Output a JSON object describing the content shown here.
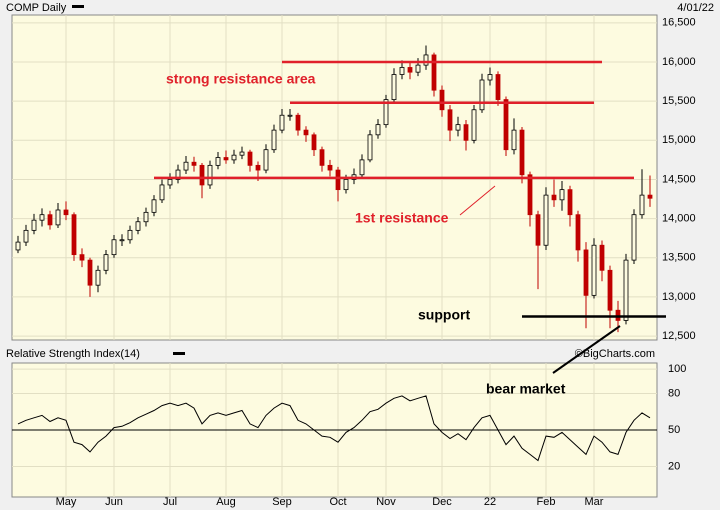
{
  "chart_data": [
    {
      "type": "candlestick",
      "title": "COMP Daily",
      "date_label": "4/01/22",
      "watermark": "©BigCharts.com",
      "categories": [
        null,
        null,
        null,
        null,
        null,
        null,
        "May",
        null,
        null,
        null,
        null,
        null,
        "Jun",
        null,
        null,
        null,
        null,
        null,
        null,
        "Jul",
        null,
        null,
        null,
        null,
        null,
        null,
        "Aug",
        null,
        null,
        null,
        null,
        null,
        null,
        "Sep",
        null,
        null,
        null,
        null,
        null,
        null,
        "Oct",
        null,
        null,
        null,
        null,
        null,
        "Nov",
        null,
        null,
        null,
        null,
        null,
        null,
        "Dec",
        null,
        null,
        null,
        null,
        null,
        "22",
        null,
        null,
        null,
        null,
        null,
        null,
        "Feb",
        null,
        null,
        null,
        null,
        null,
        "Mar",
        null,
        null,
        null,
        null,
        null,
        null,
        null
      ],
      "open": [
        13600,
        13700,
        13850,
        13980,
        14050,
        13920,
        14110,
        14050,
        13540,
        13470,
        13150,
        13340,
        13540,
        13730,
        13730,
        13850,
        13960,
        14080,
        14240,
        14430,
        14500,
        14620,
        14720,
        14680,
        14430,
        14680,
        14780,
        14750,
        14810,
        14850,
        14680,
        14620,
        14880,
        15130,
        15320,
        15320,
        15130,
        15070,
        14880,
        14680,
        14620,
        14370,
        14500,
        14560,
        14750,
        15070,
        15200,
        15520,
        15840,
        15930,
        15870,
        15960,
        16090,
        15640,
        15390,
        15130,
        15200,
        15000,
        15390,
        15770,
        15840,
        15520,
        14880,
        15130,
        14560,
        14050,
        13660,
        14300,
        14240,
        14370,
        14050,
        13600,
        13020,
        13660,
        13340,
        12830,
        12700,
        13470,
        14050,
        14300
      ],
      "high": [
        13780,
        13920,
        14060,
        14130,
        14100,
        14200,
        14220,
        14080,
        13620,
        13500,
        13400,
        13600,
        13790,
        13800,
        13910,
        14020,
        14140,
        14300,
        14500,
        14580,
        14690,
        14800,
        14790,
        14710,
        14740,
        14850,
        14870,
        14880,
        14920,
        14880,
        14730,
        14950,
        15200,
        15400,
        15400,
        15350,
        15180,
        15100,
        14920,
        14750,
        14660,
        14560,
        14640,
        14820,
        15130,
        15270,
        15580,
        15920,
        16020,
        16000,
        16050,
        16210,
        16120,
        15700,
        15450,
        15300,
        15260,
        15450,
        15850,
        15930,
        15880,
        15560,
        15280,
        15170,
        14600,
        14100,
        14400,
        14500,
        14480,
        14420,
        14100,
        13700,
        13750,
        13720,
        13400,
        12950,
        13550,
        14120,
        14630,
        14550
      ],
      "low": [
        13560,
        13650,
        13800,
        13900,
        13860,
        13880,
        13980,
        13460,
        13380,
        13000,
        13060,
        13290,
        13500,
        13650,
        13680,
        13800,
        13900,
        14030,
        14200,
        14380,
        14450,
        14570,
        14600,
        14260,
        14380,
        14630,
        14700,
        14700,
        14760,
        14600,
        14480,
        14580,
        14840,
        15090,
        15250,
        15060,
        14980,
        14800,
        14600,
        14540,
        14220,
        14320,
        14440,
        14520,
        14720,
        15020,
        15160,
        15480,
        15780,
        15780,
        15820,
        15900,
        15560,
        15300,
        14990,
        15050,
        14870,
        14960,
        15350,
        15700,
        15440,
        14800,
        14820,
        14450,
        13900,
        13100,
        13600,
        14150,
        14100,
        13900,
        13450,
        12600,
        12980,
        13200,
        12600,
        12550,
        12650,
        13420,
        14000,
        14150
      ],
      "close": [
        13700,
        13850,
        13980,
        14050,
        13920,
        14110,
        14050,
        13540,
        13470,
        13150,
        13340,
        13540,
        13730,
        13730,
        13850,
        13960,
        14080,
        14240,
        14430,
        14500,
        14620,
        14720,
        14680,
        14430,
        14680,
        14780,
        14750,
        14810,
        14850,
        14680,
        14620,
        14880,
        15130,
        15320,
        15320,
        15130,
        15070,
        14880,
        14680,
        14620,
        14370,
        14500,
        14560,
        14750,
        15070,
        15200,
        15520,
        15840,
        15930,
        15870,
        15960,
        16090,
        15640,
        15390,
        15130,
        15200,
        15000,
        15390,
        15770,
        15840,
        15520,
        14880,
        15130,
        14560,
        14050,
        13660,
        14300,
        14240,
        14370,
        14050,
        13600,
        13020,
        13660,
        13340,
        12830,
        12700,
        13470,
        14050,
        14300,
        14260
      ],
      "up_color": "#000000",
      "down_color": "#c00000",
      "ylim": [
        12450,
        16600
      ],
      "yticks": [
        {
          "value": 12500,
          "label": "12,500"
        },
        {
          "value": 13000,
          "label": "13,000"
        },
        {
          "value": 13500,
          "label": "13,500"
        },
        {
          "value": 14000,
          "label": "14,000"
        },
        {
          "value": 14500,
          "label": "14,500"
        },
        {
          "value": 15000,
          "label": "15,000"
        },
        {
          "value": 15500,
          "label": "15,500"
        },
        {
          "value": 16000,
          "label": "16,000"
        },
        {
          "value": 16500,
          "label": "16,500"
        }
      ],
      "grid": true,
      "annotations": [
        "strong resistance area",
        "1st resistance",
        "support",
        "bear market"
      ],
      "levels": [
        {
          "value": 16000,
          "from": 33,
          "to": 73,
          "color": "#e0202a"
        },
        {
          "value": 15480,
          "from": 34,
          "to": 72,
          "color": "#e0202a"
        },
        {
          "value": 14520,
          "from": 17,
          "to": 77,
          "color": "#e0202a"
        },
        {
          "value": 12750,
          "from": 63,
          "to": 81,
          "color": "#000000"
        }
      ]
    },
    {
      "type": "line",
      "title": "Relative Strength Index(14)",
      "color": "#000000",
      "values": [
        55,
        58,
        60,
        62,
        57,
        60,
        58,
        40,
        38,
        32,
        40,
        45,
        52,
        53,
        56,
        60,
        63,
        66,
        70,
        72,
        70,
        72,
        68,
        55,
        62,
        64,
        62,
        64,
        66,
        55,
        52,
        62,
        68,
        72,
        70,
        58,
        55,
        50,
        45,
        44,
        40,
        48,
        52,
        58,
        65,
        67,
        72,
        76,
        78,
        74,
        76,
        78,
        55,
        48,
        43,
        47,
        42,
        52,
        60,
        62,
        50,
        38,
        45,
        35,
        30,
        25,
        45,
        44,
        48,
        42,
        36,
        30,
        45,
        40,
        32,
        30,
        48,
        58,
        64,
        60
      ],
      "ylim": [
        -5,
        105
      ],
      "yticks": [
        20,
        50,
        80,
        100
      ],
      "reference": 50
    }
  ]
}
